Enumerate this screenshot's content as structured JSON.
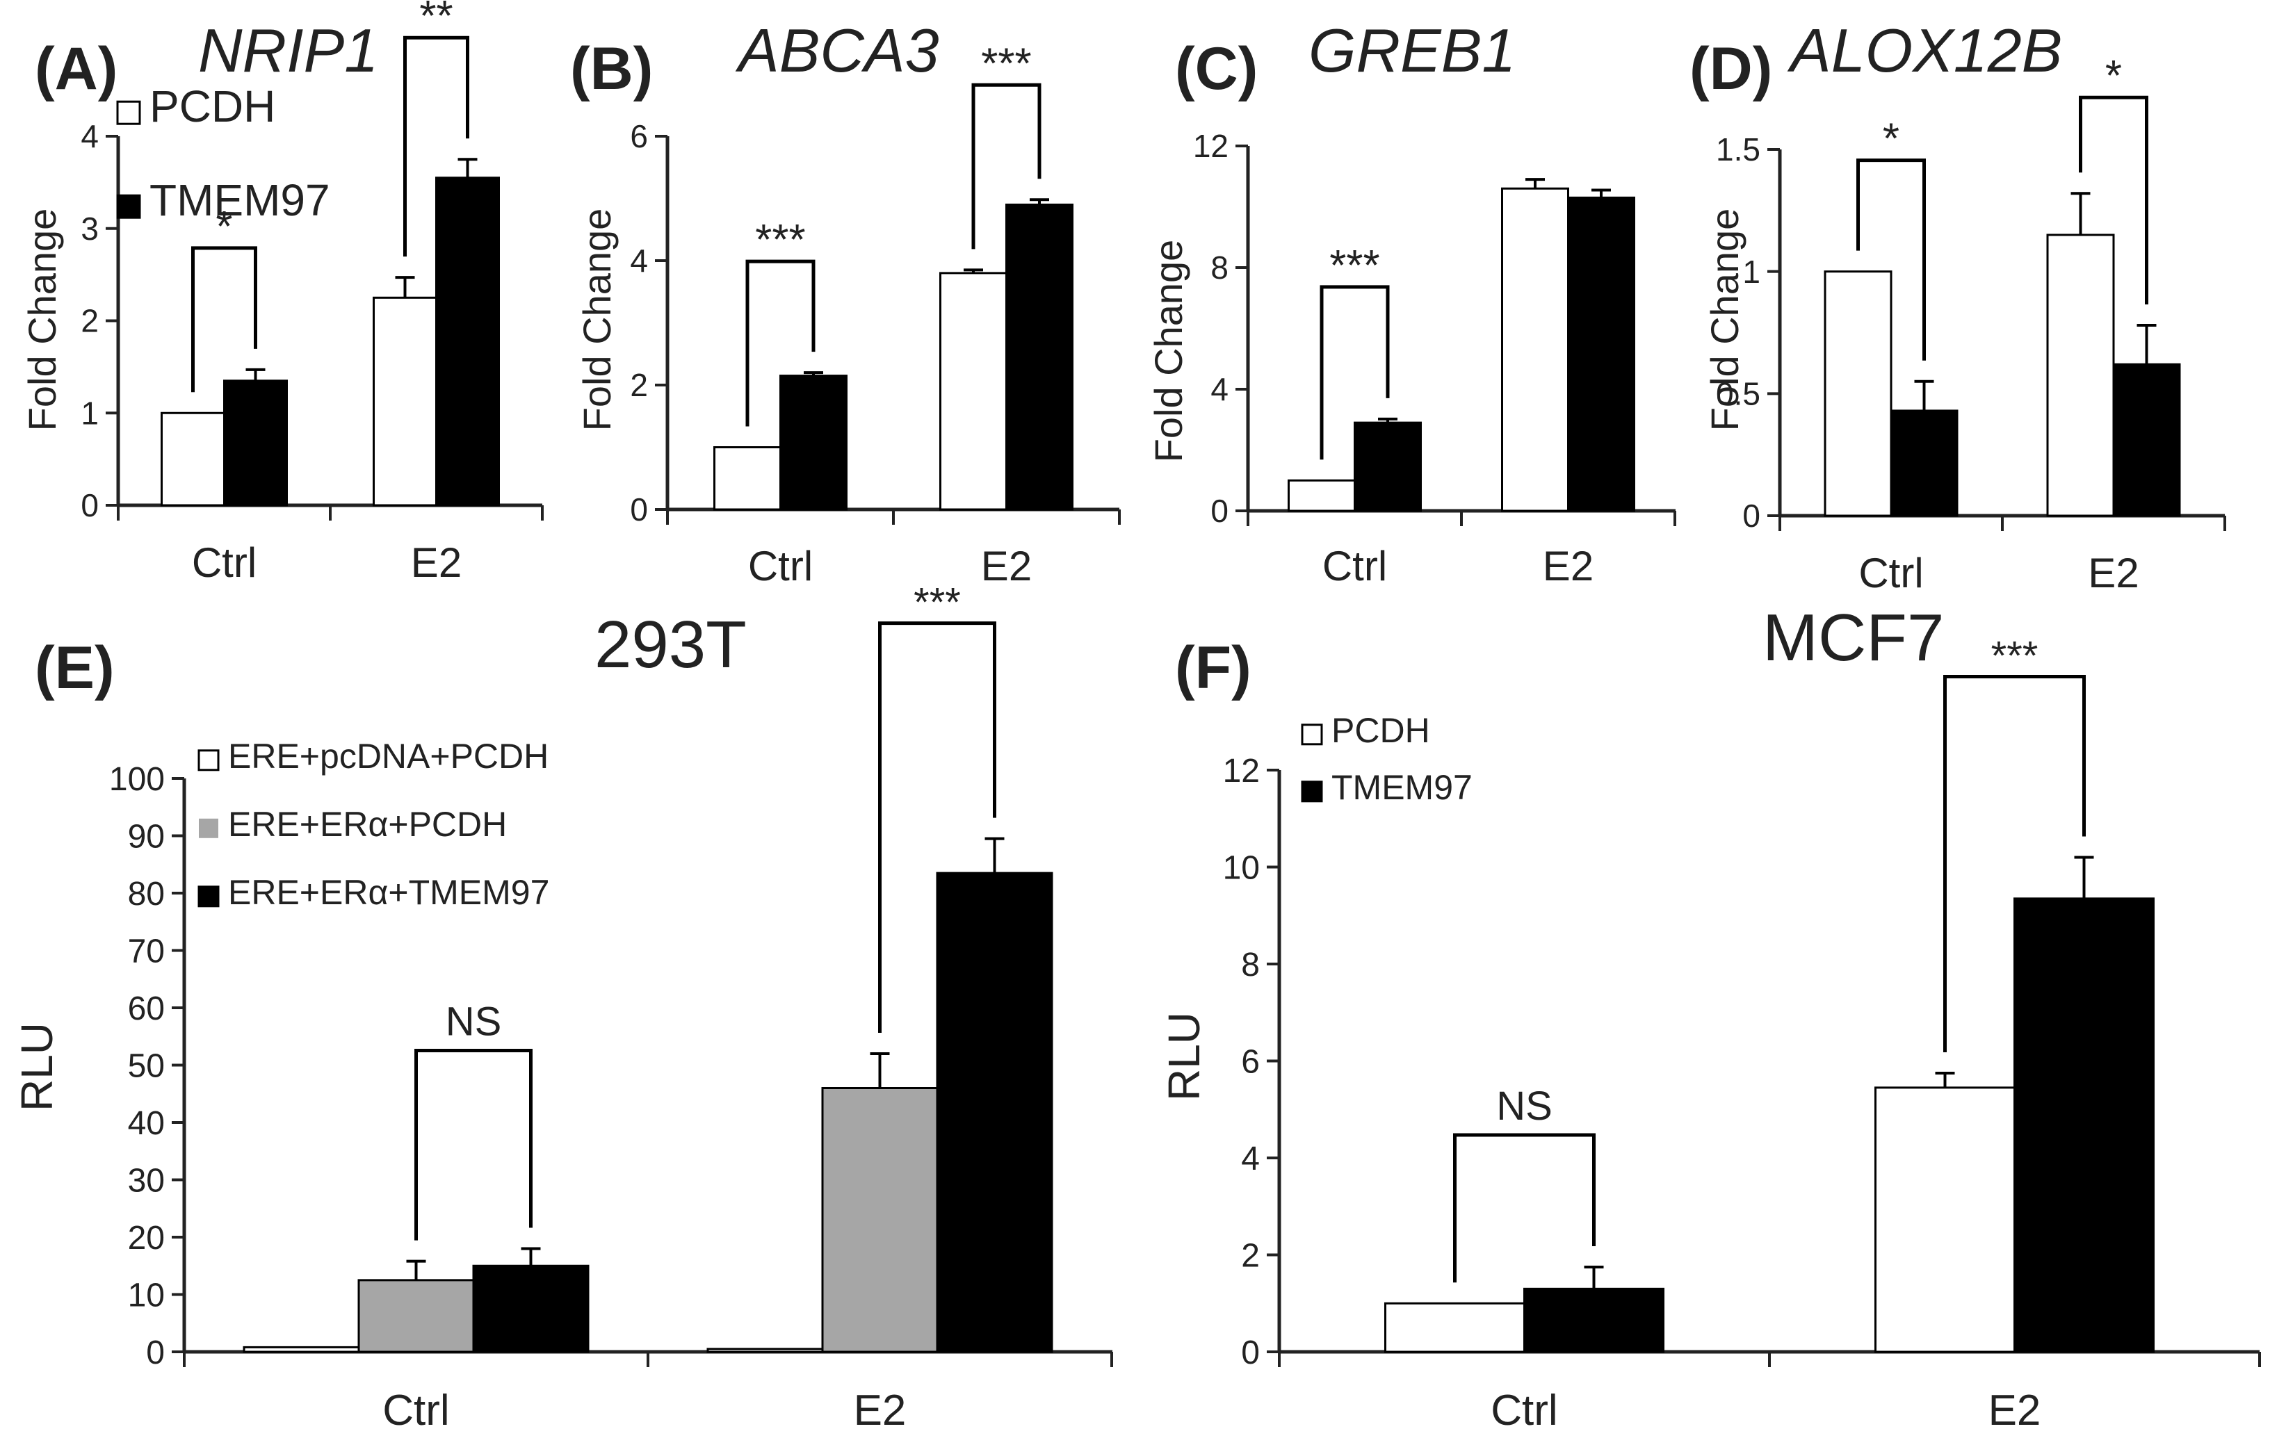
{
  "colors": {
    "white_bar": "#ffffff",
    "grey_bar": "#a6a6a6",
    "black_bar": "#000000",
    "axis": "#222222"
  },
  "chart_data": [
    {
      "panel": "(A)",
      "type": "bar",
      "title": "NRIP1",
      "ylabel": "Fold Change",
      "categories": [
        "Ctrl",
        "E2"
      ],
      "ylim": [
        0,
        4
      ],
      "yticks": [
        "0",
        "1",
        "2",
        "3",
        "4"
      ],
      "series": [
        {
          "name": "PCDH",
          "color": "#ffffff",
          "values": [
            1.0,
            2.25
          ],
          "errors": [
            0,
            0.22
          ]
        },
        {
          "name": "TMEM97",
          "color": "#000000",
          "values": [
            1.35,
            3.55
          ],
          "errors": [
            0.12,
            0.2
          ]
        }
      ],
      "legend": [
        "PCDH",
        "TMEM97"
      ],
      "significance": [
        {
          "group": 0,
          "from": 0,
          "to": 1,
          "label": "*"
        },
        {
          "group": 1,
          "from": 0,
          "to": 1,
          "label": "**"
        }
      ]
    },
    {
      "panel": "(B)",
      "type": "bar",
      "title": "ABCA3",
      "ylabel": "Fold Change",
      "categories": [
        "Ctrl",
        "E2"
      ],
      "ylim": [
        0,
        6
      ],
      "yticks": [
        "0",
        "2",
        "4",
        "6"
      ],
      "series": [
        {
          "name": "PCDH",
          "color": "#ffffff",
          "values": [
            1.0,
            3.8
          ],
          "errors": [
            0,
            0.05
          ]
        },
        {
          "name": "TMEM97",
          "color": "#000000",
          "values": [
            2.15,
            4.9
          ],
          "errors": [
            0.05,
            0.08
          ]
        }
      ],
      "significance": [
        {
          "group": 0,
          "from": 0,
          "to": 1,
          "label": "***"
        },
        {
          "group": 1,
          "from": 0,
          "to": 1,
          "label": "***"
        }
      ]
    },
    {
      "panel": "(C)",
      "type": "bar",
      "title": "GREB1",
      "ylabel": "Fold Change",
      "categories": [
        "Ctrl",
        "E2"
      ],
      "ylim": [
        0,
        12
      ],
      "yticks": [
        "0",
        "4",
        "8",
        "12"
      ],
      "series": [
        {
          "name": "PCDH",
          "color": "#ffffff",
          "values": [
            1.0,
            10.6
          ],
          "errors": [
            0,
            0.3
          ]
        },
        {
          "name": "TMEM97",
          "color": "#000000",
          "values": [
            2.9,
            10.3
          ],
          "errors": [
            0.12,
            0.25
          ]
        }
      ],
      "significance": [
        {
          "group": 0,
          "from": 0,
          "to": 1,
          "label": "***"
        }
      ]
    },
    {
      "panel": "(D)",
      "type": "bar",
      "title": "ALOX12B",
      "ylabel": "Fold Change",
      "categories": [
        "Ctrl",
        "E2"
      ],
      "ylim": [
        0,
        1.5
      ],
      "yticks": [
        "0",
        "0.5",
        "1",
        "1.5"
      ],
      "series": [
        {
          "name": "PCDH",
          "color": "#ffffff",
          "values": [
            1.0,
            1.15
          ],
          "errors": [
            0,
            0.17
          ]
        },
        {
          "name": "TMEM97",
          "color": "#000000",
          "values": [
            0.43,
            0.62
          ],
          "errors": [
            0.12,
            0.16
          ]
        }
      ],
      "significance": [
        {
          "group": 0,
          "from": 0,
          "to": 1,
          "label": "*"
        },
        {
          "group": 1,
          "from": 0,
          "to": 1,
          "label": "*"
        }
      ]
    },
    {
      "panel": "(E)",
      "type": "bar",
      "title": "293T",
      "ylabel": "RLU",
      "categories": [
        "Ctrl",
        "E2"
      ],
      "ylim": [
        0,
        100
      ],
      "yticks": [
        "0",
        "10",
        "20",
        "30",
        "40",
        "50",
        "60",
        "70",
        "80",
        "90",
        "100"
      ],
      "series": [
        {
          "name": "ERE+pcDNA+PCDH",
          "color": "#ffffff",
          "values": [
            0.8,
            0.5
          ],
          "errors": [
            0,
            0
          ]
        },
        {
          "name": "ERE+ERα+PCDH",
          "color": "#a6a6a6",
          "values": [
            12.5,
            46
          ],
          "errors": [
            3.3,
            6
          ]
        },
        {
          "name": "ERE+ERα+TMEM97",
          "color": "#000000",
          "values": [
            15,
            83.5
          ],
          "errors": [
            3,
            6
          ]
        }
      ],
      "legend": [
        "ERE+pcDNA+PCDH",
        "ERE+ERα+PCDH",
        "ERE+ERα+TMEM97"
      ],
      "significance": [
        {
          "group": 0,
          "from": 1,
          "to": 2,
          "label": "NS"
        },
        {
          "group": 1,
          "from": 1,
          "to": 2,
          "label": "***"
        }
      ]
    },
    {
      "panel": "(F)",
      "type": "bar",
      "title": "MCF7",
      "ylabel": "RLU",
      "categories": [
        "Ctrl",
        "E2"
      ],
      "ylim": [
        0,
        12
      ],
      "yticks": [
        "0",
        "2",
        "4",
        "6",
        "8",
        "10",
        "12"
      ],
      "series": [
        {
          "name": "PCDH",
          "color": "#ffffff",
          "values": [
            1.0,
            5.45
          ],
          "errors": [
            0,
            0.3
          ]
        },
        {
          "name": "TMEM97",
          "color": "#000000",
          "values": [
            1.3,
            9.35
          ],
          "errors": [
            0.45,
            0.85
          ]
        }
      ],
      "legend": [
        "PCDH",
        "TMEM97"
      ],
      "significance": [
        {
          "group": 0,
          "from": 0,
          "to": 1,
          "label": "NS"
        },
        {
          "group": 1,
          "from": 0,
          "to": 1,
          "label": "***"
        }
      ]
    }
  ]
}
